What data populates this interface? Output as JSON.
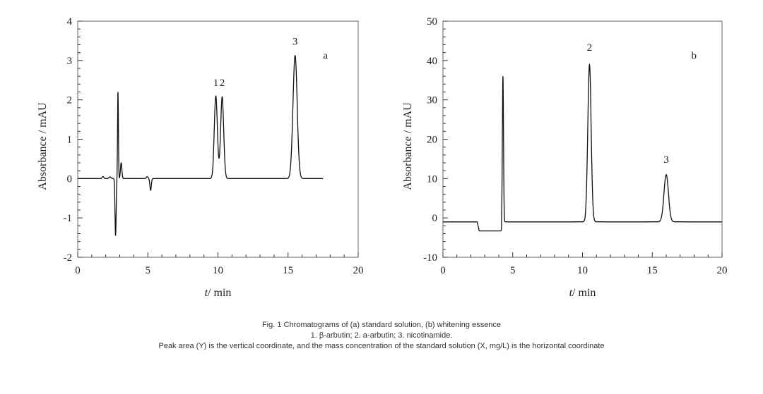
{
  "chart_data": [
    {
      "type": "line",
      "panel_label": "a",
      "xlabel_italic": "t",
      "xlabel": "/ min",
      "ylabel": "Absorbance / mAU",
      "xlim": [
        0,
        20
      ],
      "ylim": [
        -2,
        4
      ],
      "xticks": [
        "0",
        "5",
        "10",
        "15",
        "20"
      ],
      "yticks": [
        "-2",
        "-1",
        "0",
        "1",
        "2",
        "3",
        "4"
      ],
      "x_end": 17.5,
      "baseline": 0,
      "peaks": [
        {
          "t": 1.8,
          "h": 0.05,
          "w": 0.06
        },
        {
          "t": 2.3,
          "h": 0.04,
          "w": 0.08
        },
        {
          "t": 2.7,
          "h": -1.45,
          "w": 0.04
        },
        {
          "t": 2.87,
          "h": 2.2,
          "w": 0.03
        },
        {
          "t": 3.1,
          "h": 0.4,
          "w": 0.05
        },
        {
          "t": 4.95,
          "h": 0.05,
          "w": 0.06
        },
        {
          "t": 5.2,
          "h": -0.3,
          "w": 0.05
        },
        {
          "t": 9.85,
          "h": 2.1,
          "w": 0.11
        },
        {
          "t": 10.3,
          "h": 2.08,
          "w": 0.11
        },
        {
          "t": 15.5,
          "h": 3.13,
          "w": 0.15
        }
      ],
      "peak_labels": [
        {
          "text": "1",
          "t": 9.85,
          "y": 2.35
        },
        {
          "text": "2",
          "t": 10.3,
          "y": 2.35
        },
        {
          "text": "3",
          "t": 15.5,
          "y": 3.4
        }
      ]
    },
    {
      "type": "line",
      "panel_label": "b",
      "xlabel_italic": "t",
      "xlabel": "/ min",
      "ylabel": "Absorbance / mAU",
      "xlim": [
        0,
        20
      ],
      "ylim": [
        -10,
        50
      ],
      "xticks": [
        "0",
        "5",
        "10",
        "15",
        "20"
      ],
      "yticks": [
        "-10",
        "0",
        "10",
        "20",
        "30",
        "40",
        "50"
      ],
      "x_end": 20,
      "baseline": -1,
      "step": {
        "from": 2.6,
        "to": 4.2,
        "value": -3.3
      },
      "peaks": [
        {
          "t": 4.3,
          "h": 37,
          "w": 0.04
        },
        {
          "t": 10.5,
          "h": 40,
          "w": 0.12
        },
        {
          "t": 16.0,
          "h": 12,
          "w": 0.16
        }
      ],
      "peak_labels": [
        {
          "text": "2",
          "t": 10.5,
          "y": 42.5
        },
        {
          "text": "3",
          "t": 16.0,
          "y": 14
        }
      ]
    }
  ],
  "caption": {
    "line1": "Fig. 1 Chromatograms of (a) standard solution, (b) whitening essence",
    "line2": "1. β-arbutin; 2. a-arbutin; 3. nicotinamide.",
    "line3": "Peak area (Y) is the vertical coordinate, and the mass concentration of the standard solution (X, mg/L) is the horizontal coordinate"
  }
}
